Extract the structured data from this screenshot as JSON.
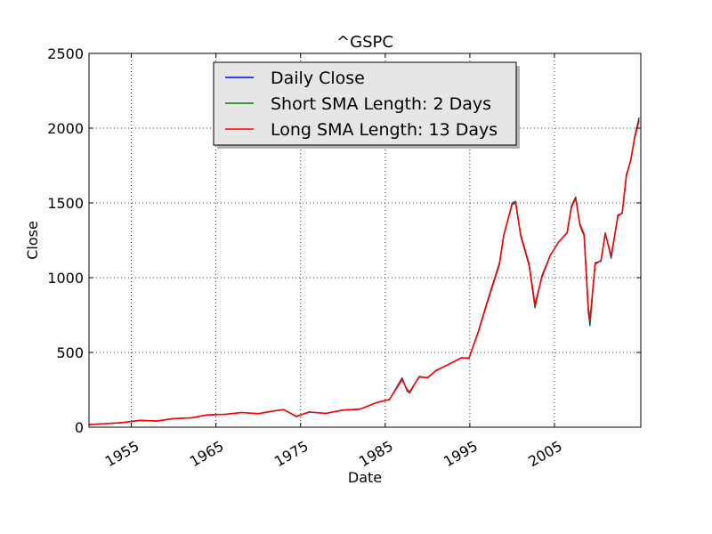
{
  "chart_data": {
    "type": "line",
    "title": "^GSPC",
    "xlabel": "Date",
    "ylabel": "Close",
    "xlim": [
      1950,
      2015.2
    ],
    "ylim": [
      0,
      2500
    ],
    "x_ticks": [
      1955,
      1965,
      1975,
      1985,
      1995,
      2005
    ],
    "x_tick_labels": [
      "1955",
      "1965",
      "1975",
      "1985",
      "1995",
      "2005"
    ],
    "y_ticks": [
      0,
      500,
      1000,
      1500,
      2000,
      2500
    ],
    "y_tick_labels": [
      "0",
      "500",
      "1000",
      "1500",
      "2000",
      "2500"
    ],
    "grid": true,
    "legend_position": "top-center",
    "x": [
      1950.0,
      1952.0,
      1954.0,
      1956.0,
      1958.0,
      1960.0,
      1962.0,
      1964.0,
      1966.0,
      1968.0,
      1970.0,
      1972.0,
      1973.0,
      1974.5,
      1976.0,
      1978.0,
      1980.0,
      1982.0,
      1984.0,
      1985.5,
      1987.0,
      1987.6,
      1987.9,
      1989.0,
      1990.0,
      1991.0,
      1992.5,
      1994.0,
      1994.9,
      1996.0,
      1997.0,
      1998.5,
      1999.0,
      2000.0,
      2000.4,
      2001.0,
      2002.0,
      2002.7,
      2003.5,
      2004.5,
      2005.5,
      2006.5,
      2007.0,
      2007.5,
      2008.0,
      2008.5,
      2009.0,
      2009.2,
      2009.8,
      2010.5,
      2011.0,
      2011.7,
      2012.5,
      2013.0,
      2013.5,
      2014.0,
      2014.5,
      2015.0
    ],
    "series": [
      {
        "name": "Daily Close",
        "color": "#0000ff",
        "values": [
          17,
          24,
          31,
          46,
          41,
          58,
          62,
          82,
          86,
          98,
          90,
          110,
          118,
          70,
          102,
          92,
          115,
          120,
          165,
          185,
          330,
          240,
          230,
          340,
          330,
          380,
          420,
          465,
          460,
          640,
          830,
          1100,
          1280,
          1500,
          1510,
          1280,
          1080,
          800,
          1010,
          1150,
          1240,
          1300,
          1480,
          1540,
          1350,
          1280,
          770,
          680,
          1100,
          1110,
          1300,
          1130,
          1420,
          1430,
          1690,
          1780,
          1950,
          2070
        ]
      },
      {
        "name": "Short SMA Length: 2 Days",
        "color": "#008000",
        "values": [
          17,
          24,
          31,
          46,
          41,
          58,
          62,
          82,
          86,
          98,
          90,
          110,
          118,
          71,
          102,
          92,
          115,
          120,
          165,
          185,
          325,
          242,
          232,
          338,
          330,
          380,
          420,
          465,
          461,
          640,
          828,
          1098,
          1282,
          1498,
          1508,
          1282,
          1082,
          805,
          1008,
          1150,
          1240,
          1300,
          1478,
          1538,
          1352,
          1282,
          780,
          690,
          1098,
          1112,
          1298,
          1135,
          1418,
          1432,
          1688,
          1782,
          1948,
          2065
        ]
      },
      {
        "name": "Long SMA Length: 13 Days",
        "color": "#ff0000",
        "values": [
          17,
          24,
          31,
          46,
          41,
          58,
          62,
          82,
          86,
          98,
          91,
          110,
          117,
          73,
          101,
          93,
          114,
          121,
          164,
          186,
          318,
          250,
          238,
          335,
          332,
          378,
          421,
          463,
          463,
          636,
          822,
          1090,
          1285,
          1490,
          1500,
          1290,
          1090,
          820,
          1000,
          1148,
          1238,
          1302,
          1470,
          1530,
          1360,
          1290,
          800,
          720,
          1090,
          1115,
          1295,
          1145,
          1410,
          1435,
          1680,
          1785,
          1940,
          2050
        ]
      }
    ]
  }
}
